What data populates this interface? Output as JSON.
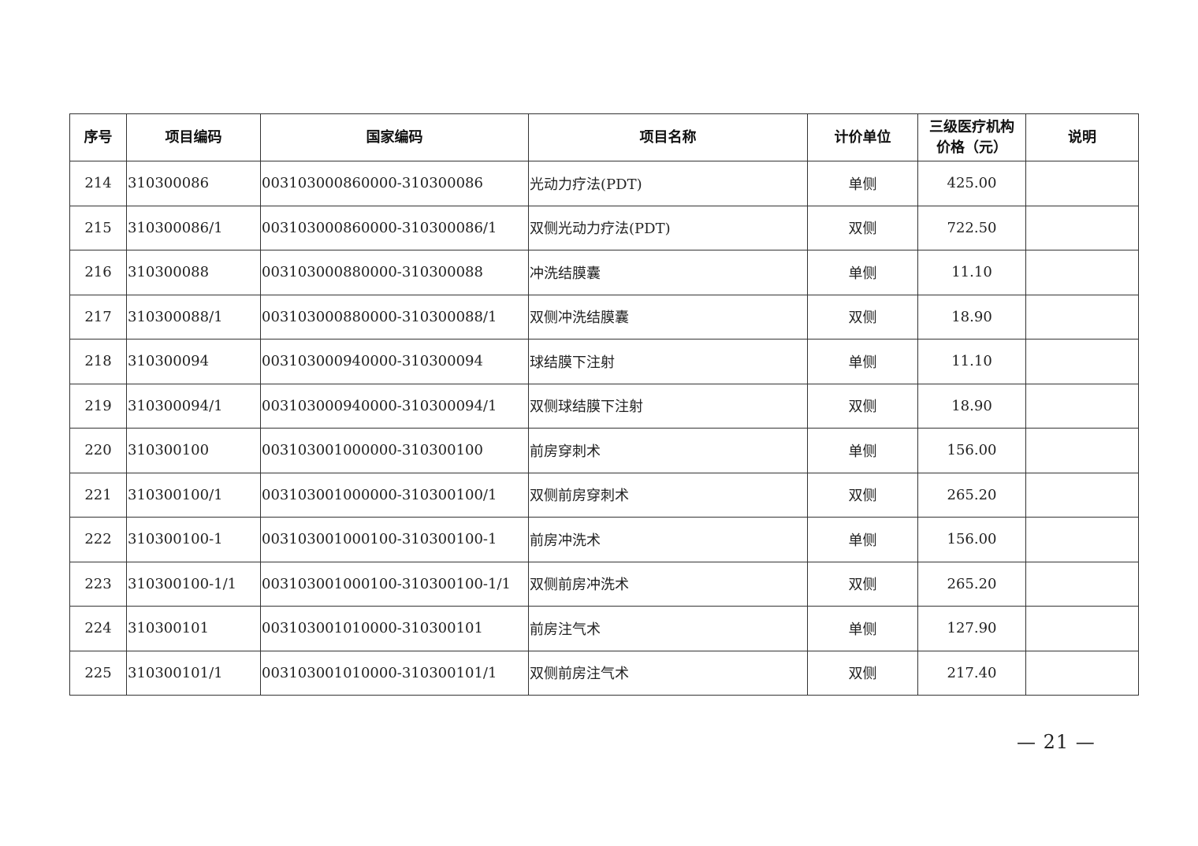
{
  "table": {
    "headers": [
      "序号",
      "项目编码",
      "国家编码",
      "项目名称",
      "计价单位",
      "三级医疗机构价格（元）",
      "说明"
    ],
    "header_price_line1": "三级医疗机构",
    "header_price_line2": "价格（元）",
    "rows": [
      [
        "214",
        "310300086",
        "003103000860000-310300086",
        "光动力疗法(PDT)",
        "单侧",
        "425.00",
        ""
      ],
      [
        "215",
        "310300086/1",
        "003103000860000-310300086/1",
        "双侧光动力疗法(PDT)",
        "双侧",
        "722.50",
        ""
      ],
      [
        "216",
        "310300088",
        "003103000880000-310300088",
        "冲洗结膜囊",
        "单侧",
        "11.10",
        ""
      ],
      [
        "217",
        "310300088/1",
        "003103000880000-310300088/1",
        "双侧冲洗结膜囊",
        "双侧",
        "18.90",
        ""
      ],
      [
        "218",
        "310300094",
        "003103000940000-310300094",
        "球结膜下注射",
        "单侧",
        "11.10",
        ""
      ],
      [
        "219",
        "310300094/1",
        "003103000940000-310300094/1",
        "双侧球结膜下注射",
        "双侧",
        "18.90",
        ""
      ],
      [
        "220",
        "310300100",
        "003103001000000-310300100",
        "前房穿刺术",
        "单侧",
        "156.00",
        ""
      ],
      [
        "221",
        "310300100/1",
        "003103001000000-310300100/1",
        "双侧前房穿刺术",
        "双侧",
        "265.20",
        ""
      ],
      [
        "222",
        "310300100-1",
        "003103001000100-310300100-1",
        "前房冲洗术",
        "单侧",
        "156.00",
        ""
      ],
      [
        "223",
        "310300100-1/1",
        "003103001000100-310300100-1/1",
        "双侧前房冲洗术",
        "双侧",
        "265.20",
        ""
      ],
      [
        "224",
        "310300101",
        "003103001010000-310300101",
        "前房注气术",
        "单侧",
        "127.90",
        ""
      ],
      [
        "225",
        "310300101/1",
        "003103001010000-310300101/1",
        "双侧前房注气术",
        "双侧",
        "217.40",
        ""
      ]
    ]
  },
  "page_number": "— 21 —"
}
